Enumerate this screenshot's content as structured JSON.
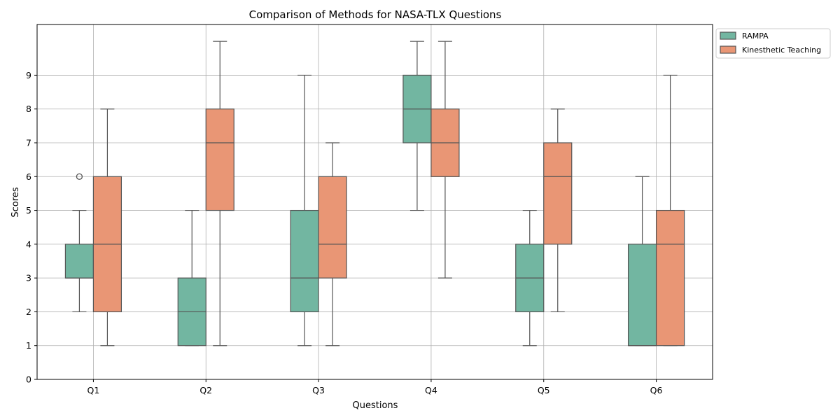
{
  "chart_data": {
    "type": "box",
    "title": "Comparison of Methods for NASA-TLX Questions",
    "xlabel": "Questions",
    "ylabel": "Scores",
    "ylim": [
      0,
      10.5
    ],
    "yticks": [
      "0",
      "1",
      "2",
      "3",
      "4",
      "5",
      "6",
      "7",
      "8",
      "9"
    ],
    "grid": true,
    "legend_position": "outside top-right",
    "categories": [
      "Q1",
      "Q2",
      "Q3",
      "Q4",
      "Q5",
      "Q6"
    ],
    "series": [
      {
        "name": "RAMPA",
        "color": "#72b6a1",
        "boxes": [
          {
            "whisker_low": 2,
            "q1": 3,
            "median": 3,
            "q3": 4,
            "whisker_high": 5,
            "outliers": [
              6
            ]
          },
          {
            "whisker_low": 1,
            "q1": 1,
            "median": 2,
            "q3": 3,
            "whisker_high": 5,
            "outliers": []
          },
          {
            "whisker_low": 1,
            "q1": 2,
            "median": 3,
            "q3": 5,
            "whisker_high": 9,
            "outliers": []
          },
          {
            "whisker_low": 5,
            "q1": 7,
            "median": 8,
            "q3": 9,
            "whisker_high": 10,
            "outliers": []
          },
          {
            "whisker_low": 1,
            "q1": 2,
            "median": 3,
            "q3": 4,
            "whisker_high": 5,
            "outliers": []
          },
          {
            "whisker_low": 1,
            "q1": 1,
            "median": 1,
            "q3": 4,
            "whisker_high": 6,
            "outliers": []
          }
        ]
      },
      {
        "name": "Kinesthetic Teaching",
        "color": "#e99675",
        "boxes": [
          {
            "whisker_low": 1,
            "q1": 2,
            "median": 4,
            "q3": 6,
            "whisker_high": 8,
            "outliers": []
          },
          {
            "whisker_low": 1,
            "q1": 5,
            "median": 7,
            "q3": 8,
            "whisker_high": 10,
            "outliers": []
          },
          {
            "whisker_low": 1,
            "q1": 3,
            "median": 4,
            "q3": 6,
            "whisker_high": 7,
            "outliers": []
          },
          {
            "whisker_low": 3,
            "q1": 6,
            "median": 7,
            "q3": 8,
            "whisker_high": 10,
            "outliers": []
          },
          {
            "whisker_low": 2,
            "q1": 4,
            "median": 6,
            "q3": 7,
            "whisker_high": 8,
            "outliers": []
          },
          {
            "whisker_low": 1,
            "q1": 1,
            "median": 4,
            "q3": 5,
            "whisker_high": 9,
            "outliers": []
          }
        ]
      }
    ]
  }
}
